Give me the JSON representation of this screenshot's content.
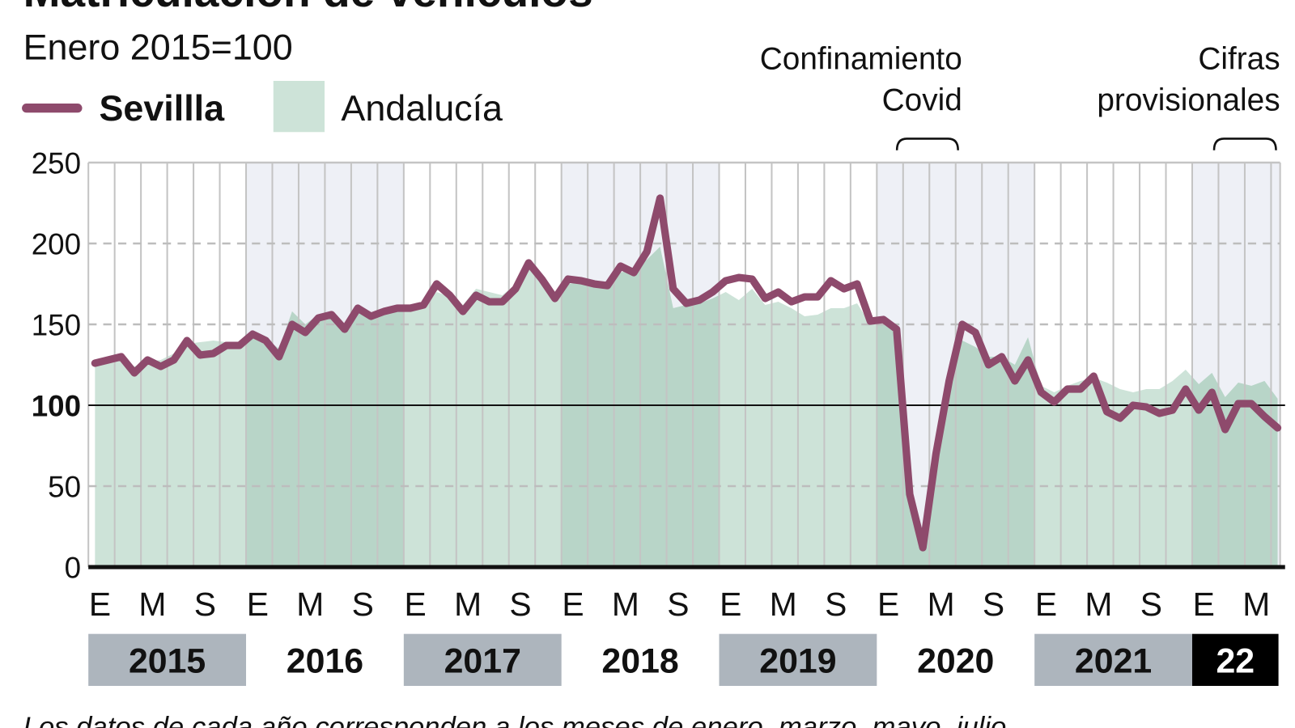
{
  "header": {
    "title": "Matriculación de vehículos",
    "subtitle": "Enero 2015=100"
  },
  "legend": {
    "sevilla_label": "Sevillla",
    "andalucia_label": "Andalucía"
  },
  "annotations": {
    "covid_line1": "Confinamiento",
    "covid_line2": "Covid",
    "prov_line1": "Cifras",
    "prov_line2": "provisionales"
  },
  "footnote": "Los datos de cada año corresponden a los meses de enero, marzo, mayo, julio",
  "colors": {
    "sevilla_line": "#8e4a6c",
    "andalucia_area": "#cde3d8",
    "andalucia_area_alt": "#b8d5c8",
    "band_alt": "#eef0f6",
    "year_box": "#adb5bd",
    "year_box_last": "#000000"
  },
  "chart_data": {
    "type": "line",
    "title": "Matriculación de vehículos",
    "subtitle": "Enero 2015=100",
    "ylim": [
      0,
      250
    ],
    "yticks": [
      "250",
      "200",
      "150",
      "100",
      "50",
      "0"
    ],
    "reference_line": 100,
    "grid": true,
    "legend_placement": "top-left",
    "x": [
      "2015-01",
      "2015-02",
      "2015-03",
      "2015-04",
      "2015-05",
      "2015-06",
      "2015-07",
      "2015-08",
      "2015-09",
      "2015-10",
      "2015-11",
      "2015-12",
      "2016-01",
      "2016-02",
      "2016-03",
      "2016-04",
      "2016-05",
      "2016-06",
      "2016-07",
      "2016-08",
      "2016-09",
      "2016-10",
      "2016-11",
      "2016-12",
      "2017-01",
      "2017-02",
      "2017-03",
      "2017-04",
      "2017-05",
      "2017-06",
      "2017-07",
      "2017-08",
      "2017-09",
      "2017-10",
      "2017-11",
      "2017-12",
      "2018-01",
      "2018-02",
      "2018-03",
      "2018-04",
      "2018-05",
      "2018-06",
      "2018-07",
      "2018-08",
      "2018-09",
      "2018-10",
      "2018-11",
      "2018-12",
      "2019-01",
      "2019-02",
      "2019-03",
      "2019-04",
      "2019-05",
      "2019-06",
      "2019-07",
      "2019-08",
      "2019-09",
      "2019-10",
      "2019-11",
      "2019-12",
      "2020-01",
      "2020-02",
      "2020-03",
      "2020-04",
      "2020-05",
      "2020-06",
      "2020-07",
      "2020-08",
      "2020-09",
      "2020-10",
      "2020-11",
      "2020-12",
      "2021-01",
      "2021-02",
      "2021-03",
      "2021-04",
      "2021-05",
      "2021-06",
      "2021-07",
      "2021-08",
      "2021-09",
      "2021-10",
      "2021-11",
      "2021-12",
      "2022-01",
      "2022-02",
      "2022-03",
      "2022-04",
      "2022-05",
      "2022-06",
      "2022-07"
    ],
    "month_ticks": [
      {
        "label": "E",
        "x": "2015-01"
      },
      {
        "label": "M",
        "x": "2015-05"
      },
      {
        "label": "S",
        "x": "2015-09"
      },
      {
        "label": "E",
        "x": "2016-01"
      },
      {
        "label": "M",
        "x": "2016-05"
      },
      {
        "label": "S",
        "x": "2016-09"
      },
      {
        "label": "E",
        "x": "2017-01"
      },
      {
        "label": "M",
        "x": "2017-05"
      },
      {
        "label": "S",
        "x": "2017-09"
      },
      {
        "label": "E",
        "x": "2018-01"
      },
      {
        "label": "M",
        "x": "2018-05"
      },
      {
        "label": "S",
        "x": "2018-09"
      },
      {
        "label": "E",
        "x": "2019-01"
      },
      {
        "label": "M",
        "x": "2019-05"
      },
      {
        "label": "S",
        "x": "2019-09"
      },
      {
        "label": "E",
        "x": "2020-01"
      },
      {
        "label": "M",
        "x": "2020-05"
      },
      {
        "label": "S",
        "x": "2020-09"
      },
      {
        "label": "E",
        "x": "2021-01"
      },
      {
        "label": "M",
        "x": "2021-05"
      },
      {
        "label": "S",
        "x": "2021-09"
      },
      {
        "label": "E",
        "x": "2022-01"
      },
      {
        "label": "M",
        "x": "2022-05"
      }
    ],
    "years": [
      {
        "label": "2015",
        "box": "gray"
      },
      {
        "label": "2016",
        "box": "none"
      },
      {
        "label": "2017",
        "box": "gray"
      },
      {
        "label": "2018",
        "box": "none"
      },
      {
        "label": "2019",
        "box": "gray"
      },
      {
        "label": "2020",
        "box": "none"
      },
      {
        "label": "2021",
        "box": "gray"
      },
      {
        "label": "22",
        "box": "black"
      }
    ],
    "series": [
      {
        "name": "Sevillla",
        "type": "line",
        "values": [
          126,
          128,
          130,
          120,
          128,
          124,
          128,
          140,
          131,
          132,
          137,
          137,
          144,
          140,
          130,
          150,
          145,
          154,
          156,
          147,
          160,
          155,
          158,
          160,
          160,
          162,
          175,
          168,
          158,
          168,
          164,
          164,
          172,
          188,
          178,
          166,
          178,
          177,
          175,
          174,
          186,
          182,
          195,
          228,
          172,
          163,
          165,
          170,
          177,
          179,
          178,
          166,
          170,
          164,
          167,
          167,
          177,
          172,
          175,
          152,
          153,
          147,
          45,
          12,
          70,
          115,
          150,
          145,
          125,
          130,
          115,
          128,
          108,
          102,
          110,
          110,
          118,
          96,
          92,
          100,
          99,
          95,
          97,
          110,
          97,
          108,
          85,
          101,
          101,
          93,
          86
        ]
      },
      {
        "name": "Andalucía",
        "type": "area",
        "values": [
          124,
          127,
          129,
          124,
          127,
          128,
          132,
          138,
          139,
          140,
          139,
          138,
          143,
          141,
          135,
          158,
          150,
          156,
          158,
          150,
          158,
          156,
          158,
          160,
          160,
          161,
          170,
          167,
          162,
          172,
          170,
          168,
          175,
          185,
          177,
          168,
          175,
          176,
          174,
          176,
          182,
          184,
          190,
          198,
          160,
          162,
          163,
          166,
          170,
          165,
          172,
          162,
          164,
          160,
          155,
          156,
          160,
          160,
          163,
          150,
          150,
          146,
          50,
          15,
          72,
          118,
          140,
          136,
          130,
          130,
          125,
          142,
          112,
          108,
          112,
          115,
          117,
          114,
          110,
          108,
          110,
          110,
          115,
          122,
          113,
          120,
          105,
          114,
          112,
          115,
          104
        ]
      }
    ],
    "annotations": [
      {
        "text": "Confinamiento Covid",
        "x_range": [
          "2020-03",
          "2020-07"
        ]
      },
      {
        "text": "Cifras provisionales",
        "x_range": [
          "2022-03",
          "2022-07"
        ]
      }
    ]
  }
}
